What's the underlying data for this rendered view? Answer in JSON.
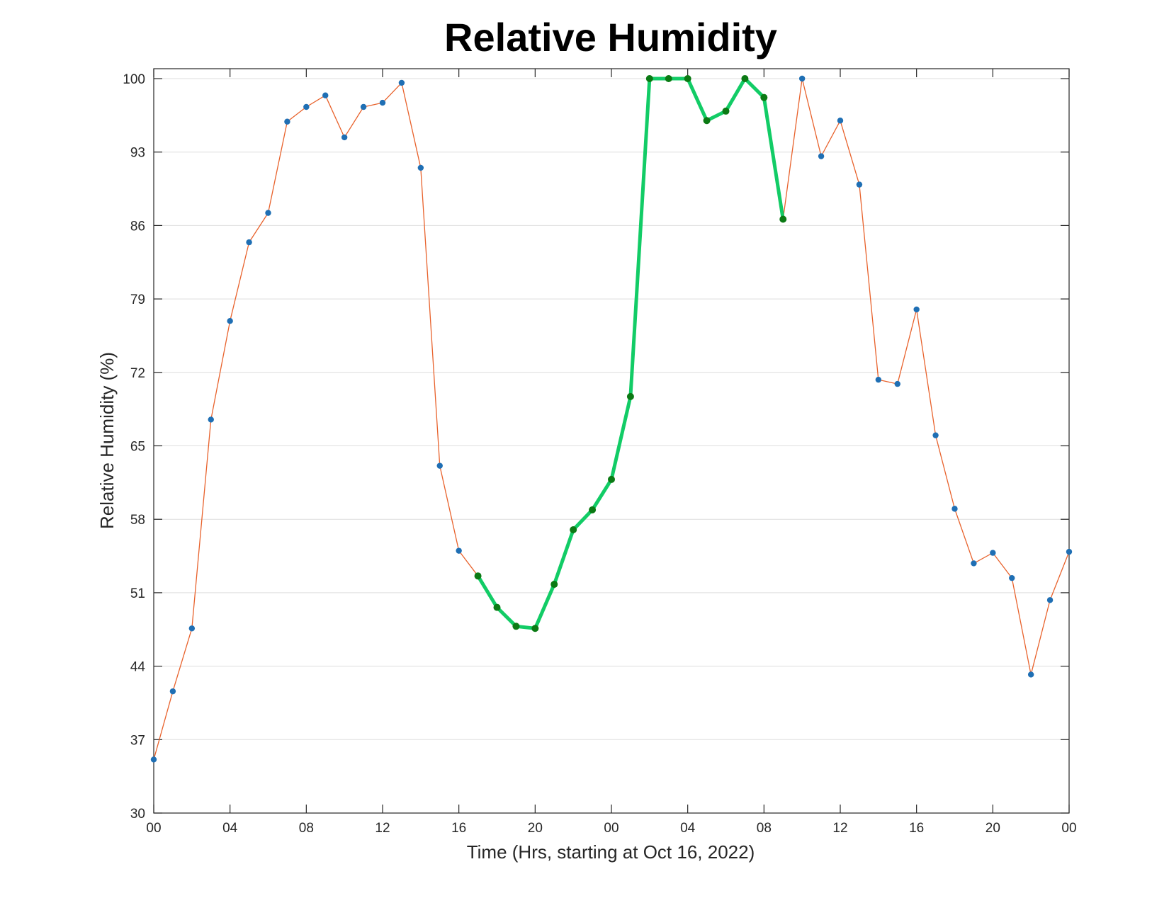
{
  "chart_data": {
    "type": "line",
    "title": "Relative Humidity",
    "xlabel": "Time (Hrs, starting at Oct 16, 2022)",
    "ylabel": "Relative Humidity (%)",
    "xlim": [
      0,
      48
    ],
    "ylim": [
      30,
      100
    ],
    "yticks": [
      30,
      37,
      44,
      51,
      58,
      65,
      72,
      79,
      86,
      93,
      100
    ],
    "xticks": [
      0,
      4,
      8,
      12,
      16,
      20,
      24,
      28,
      32,
      36,
      40,
      44,
      48
    ],
    "xtick_labels": [
      "00",
      "04",
      "08",
      "12",
      "16",
      "20",
      "00",
      "04",
      "08",
      "12",
      "16",
      "20",
      "00"
    ],
    "grid": "horizontal",
    "colors": {
      "line": "#e8622c",
      "marker": "#1f6fb4",
      "highlight_line": "#12cc66",
      "highlight_marker": "#0b7a14"
    },
    "series": [
      {
        "x": [
          0,
          1,
          2,
          3,
          4,
          5,
          6,
          7,
          8,
          9,
          10,
          11,
          12,
          13,
          14,
          15,
          16,
          17,
          18,
          19,
          20,
          21,
          22,
          23,
          24,
          25,
          26,
          27,
          28,
          29,
          30,
          31,
          32,
          33,
          34,
          35,
          36,
          37,
          38,
          39,
          40,
          41,
          42,
          43,
          44,
          45,
          46,
          47,
          48
        ],
        "values": [
          35.1,
          41.6,
          47.6,
          67.5,
          76.9,
          84.4,
          87.2,
          95.9,
          97.3,
          98.4,
          94.4,
          97.3,
          97.7,
          99.6,
          91.5,
          63.1,
          55.0,
          52.6,
          49.6,
          47.8,
          47.6,
          51.8,
          57.0,
          58.9,
          61.8,
          69.7,
          100.0,
          100.0,
          100.0,
          96.0,
          96.9,
          100.0,
          98.2,
          86.6,
          100.0,
          92.6,
          96.0,
          89.9,
          71.3,
          70.9,
          78.0,
          66.0,
          59.0,
          53.8,
          54.8,
          52.4,
          43.2,
          50.3,
          54.9
        ]
      }
    ],
    "highlight_range": [
      17,
      33
    ]
  }
}
